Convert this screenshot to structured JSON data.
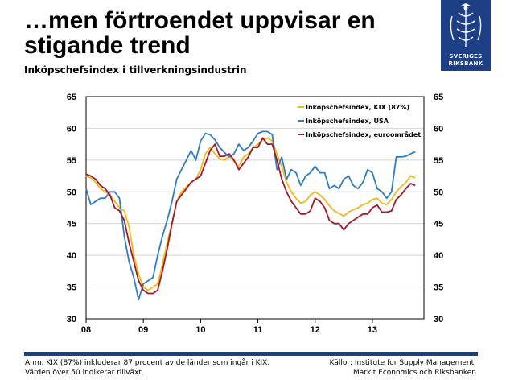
{
  "header": {
    "title_line1": "…men förtroendet uppvisar en",
    "title_line2": "stigande trend",
    "subtitle": "Inköpschefsindex i tillverkningsindustrin"
  },
  "logo": {
    "icon": "riksbank-crest-icon",
    "line1": "SVERIGES",
    "line2": "RIKSBANK"
  },
  "footer": {
    "note_line1": "Anm. KIX (87%) inkluderar 87 procent av de länder som ingår i KIX.",
    "note_line2": "Värden över 50 indikerar tillväxt.",
    "source_line1": "Källor: Institute for Supply Management,",
    "source_line2": "Markit Economics och Riksbanken"
  },
  "colors": {
    "brand": "#1c3f86",
    "kix": "#f2b81c",
    "usa": "#2f7dc0",
    "euro": "#a3182a",
    "grid": "#d4d4d4"
  },
  "chart_data": {
    "type": "line",
    "xlabel": "",
    "ylabel": "",
    "xlim": [
      2008.0,
      2013.9
    ],
    "ylim": [
      30,
      65
    ],
    "yticks": [
      30,
      35,
      40,
      45,
      50,
      55,
      60,
      65
    ],
    "xticks": [
      {
        "label": "08",
        "x": 2008.0
      },
      {
        "label": "09",
        "x": 2009.0
      },
      {
        "label": "10",
        "x": 2010.0
      },
      {
        "label": "11",
        "x": 2011.0
      },
      {
        "label": "12",
        "x": 2012.0
      },
      {
        "label": "13",
        "x": 2013.0
      }
    ],
    "grid": true,
    "legend": "top-right",
    "x_start": 2008.0,
    "x_step_months": 1,
    "series": [
      {
        "name": "Inköpschefsindex, KIX (87%)",
        "color": "#f2b81c",
        "values": [
          52.5,
          52.2,
          51.5,
          50.5,
          50.0,
          49.5,
          48.5,
          47.5,
          47.0,
          44.5,
          40.0,
          37.0,
          35.0,
          34.5,
          35.0,
          35.5,
          38.5,
          42.0,
          45.0,
          48.5,
          50.0,
          50.8,
          51.5,
          52.0,
          53.5,
          56.0,
          57.0,
          56.0,
          55.2,
          55.0,
          55.6,
          54.8,
          54.0,
          55.5,
          56.0,
          57.0,
          57.5,
          58.2,
          58.5,
          58.0,
          56.0,
          54.0,
          51.5,
          50.0,
          49.0,
          48.2,
          48.5,
          49.5,
          50.0,
          49.5,
          48.8,
          47.8,
          47.0,
          46.6,
          46.2,
          46.8,
          47.2,
          47.5,
          48.0,
          48.2,
          48.8,
          49.0,
          48.2,
          48.0,
          48.8,
          50.0,
          50.8,
          51.5,
          52.5,
          52.2
        ]
      },
      {
        "name": "Inköpschefsindex, USA",
        "color": "#2f7dc0",
        "values": [
          50.5,
          48.0,
          48.5,
          49.0,
          49.0,
          50.0,
          50.0,
          49.0,
          43.0,
          39.0,
          36.5,
          33.0,
          35.5,
          36.0,
          36.5,
          40.0,
          43.0,
          45.5,
          48.5,
          52.0,
          53.5,
          55.0,
          56.5,
          55.0,
          58.0,
          59.2,
          59.0,
          58.2,
          57.0,
          56.2,
          55.5,
          56.0,
          57.5,
          56.5,
          57.0,
          58.0,
          59.2,
          59.5,
          59.5,
          59.0,
          53.5,
          55.5,
          52.0,
          53.5,
          53.0,
          51.0,
          52.5,
          53.0,
          54.0,
          53.0,
          53.0,
          50.5,
          51.0,
          50.5,
          52.0,
          52.5,
          51.0,
          50.5,
          51.5,
          53.5,
          53.0,
          50.5,
          50.0,
          49.0,
          50.0,
          55.5,
          55.5,
          55.6,
          56.0,
          56.3
        ]
      },
      {
        "name": "Inköpschefsindex, euroområdet",
        "color": "#a3182a",
        "values": [
          52.8,
          52.5,
          52.0,
          51.0,
          50.5,
          49.5,
          47.5,
          47.0,
          45.5,
          42.0,
          39.0,
          36.0,
          34.5,
          34.0,
          34.0,
          34.5,
          37.5,
          41.0,
          45.0,
          48.5,
          49.5,
          50.5,
          51.5,
          52.0,
          52.5,
          54.5,
          56.5,
          57.5,
          55.6,
          55.6,
          56.0,
          55.0,
          53.5,
          54.5,
          55.5,
          57.0,
          57.0,
          58.5,
          57.5,
          57.5,
          55.0,
          52.0,
          50.0,
          48.5,
          47.5,
          46.5,
          46.5,
          47.0,
          49.0,
          48.5,
          47.5,
          45.5,
          45.0,
          45.0,
          44.0,
          45.0,
          45.5,
          46.0,
          46.5,
          46.5,
          47.5,
          47.9,
          46.8,
          46.8,
          47.0,
          48.8,
          49.5,
          50.5,
          51.3,
          51.0
        ]
      }
    ]
  }
}
